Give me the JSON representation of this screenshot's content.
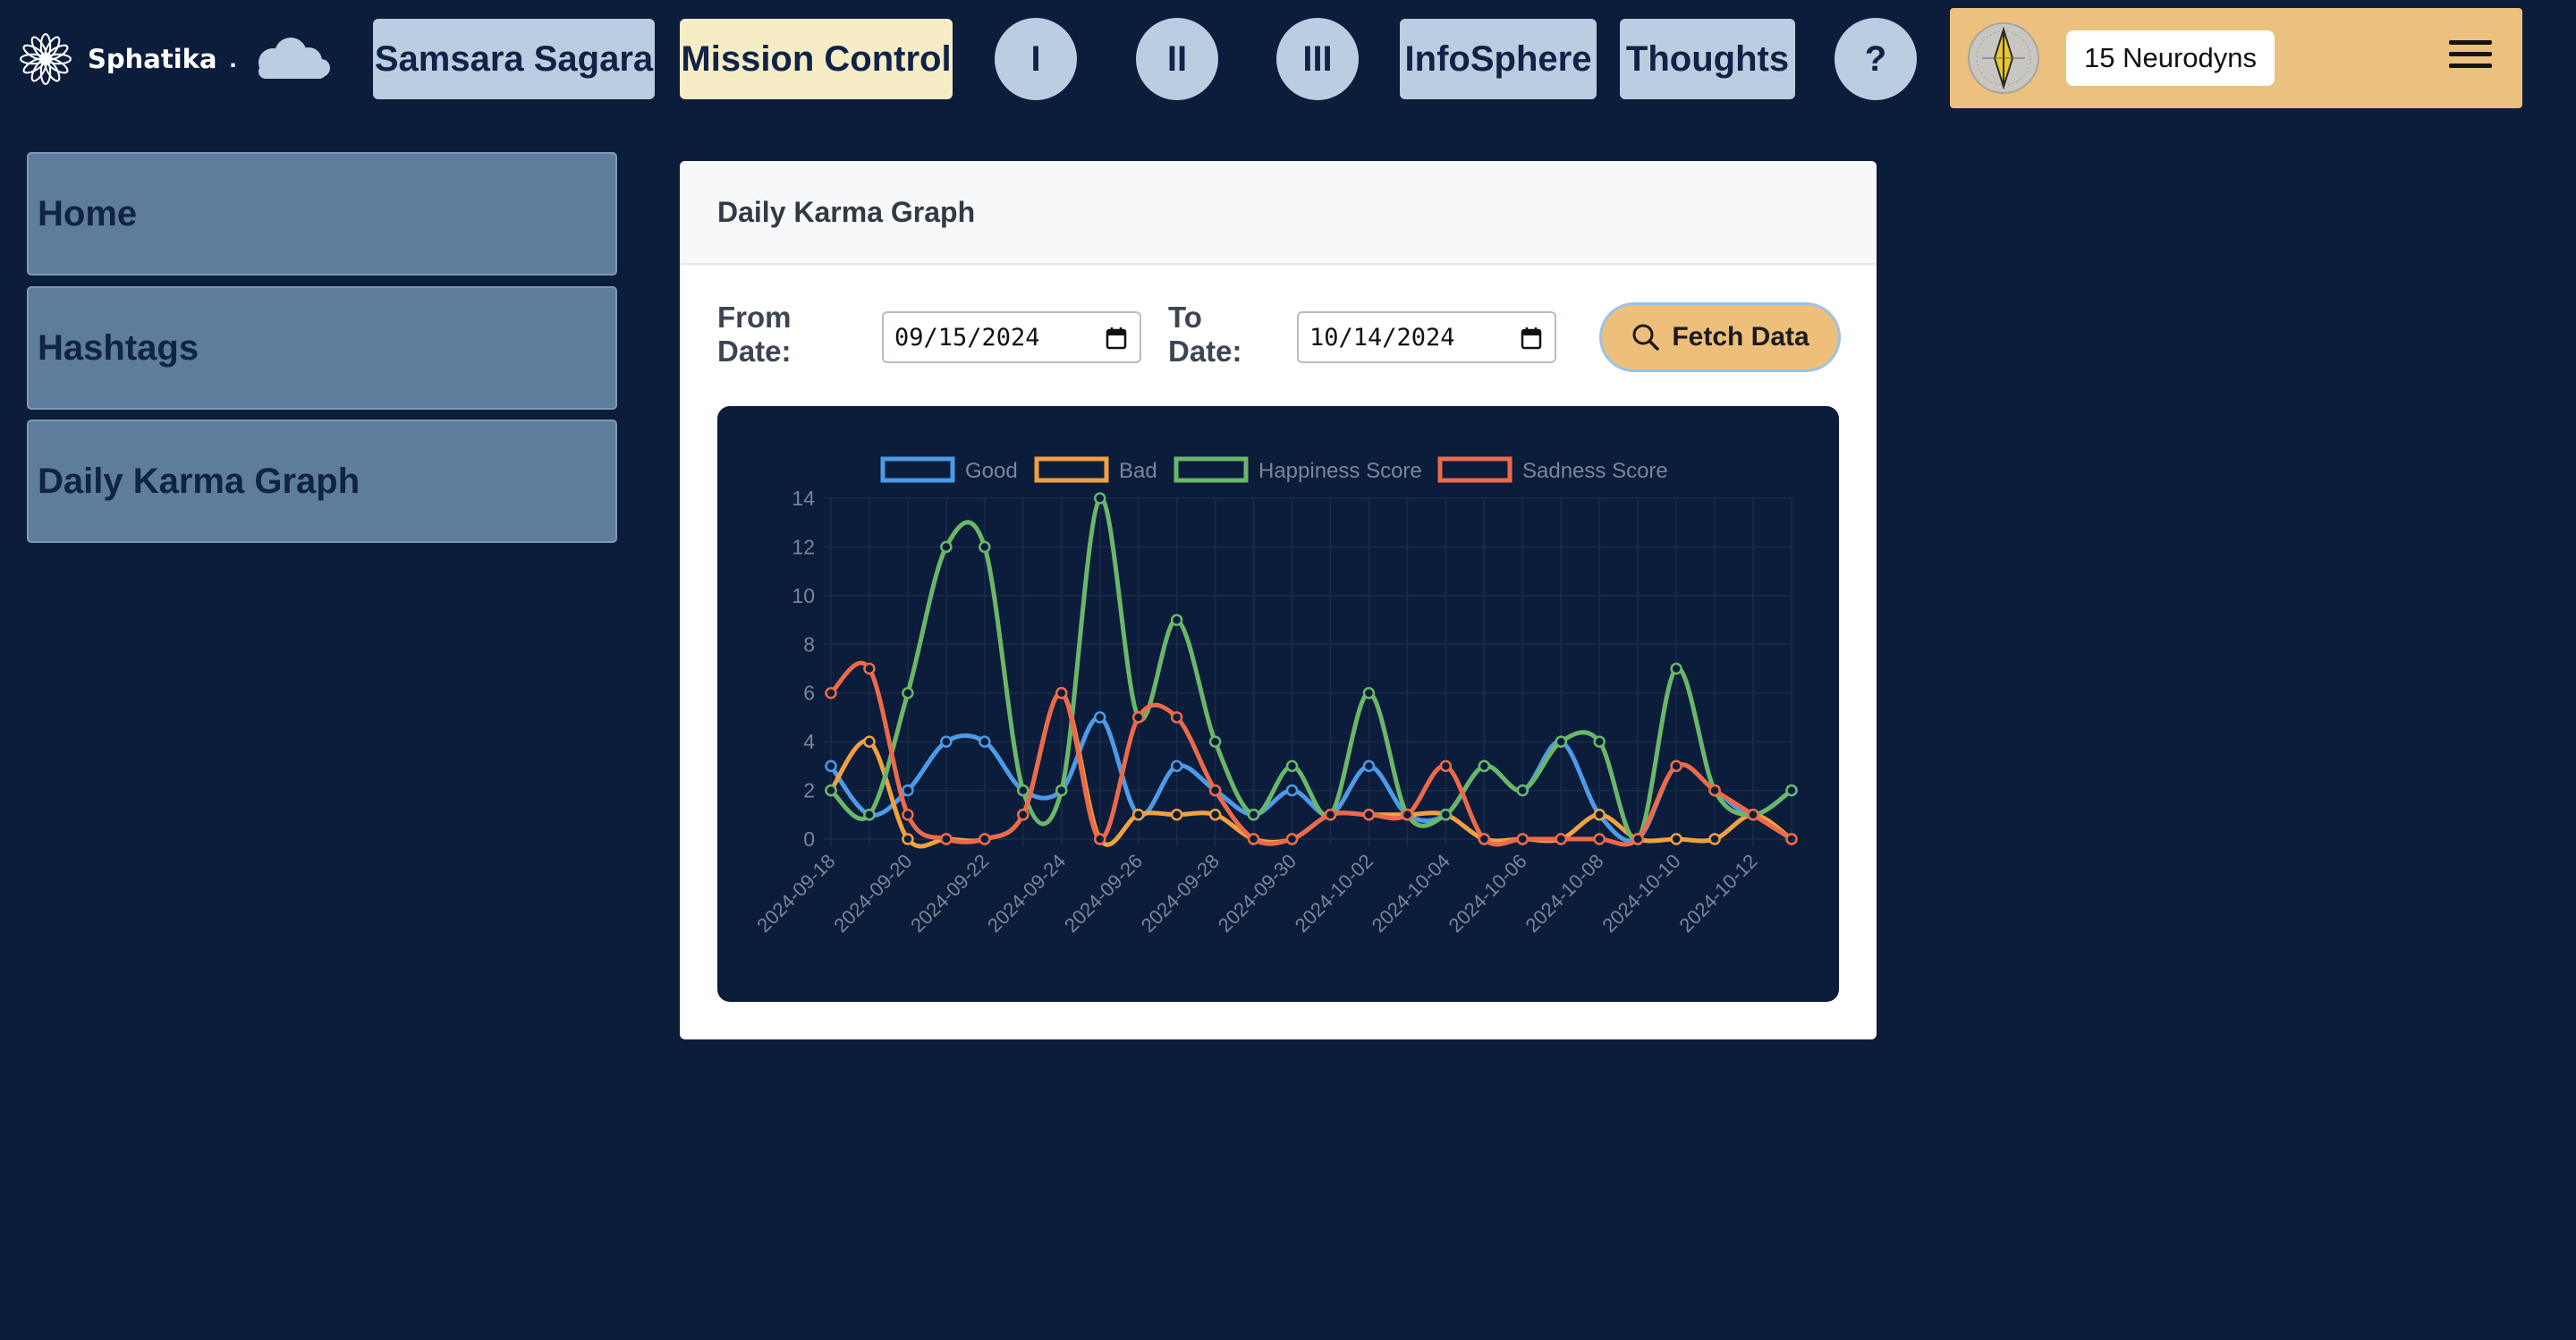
{
  "app": {
    "brand": "Sphatika",
    "brand_dot": "."
  },
  "nav": {
    "samsara": "Samsara Sagara",
    "mission": "Mission Control",
    "r1": "I",
    "r2": "II",
    "r3": "III",
    "infosphere": "InfoSphere",
    "thoughts": "Thoughts",
    "help": "?"
  },
  "user": {
    "neurodyns": "15 Neurodyns"
  },
  "sidebar": {
    "items": [
      {
        "label": "Home"
      },
      {
        "label": "Hashtags"
      },
      {
        "label": "Daily Karma Graph"
      }
    ]
  },
  "card": {
    "title": "Daily Karma Graph",
    "from_label_1": "From",
    "from_label_2": "Date:",
    "to_label_1": "To",
    "to_label_2": "Date:",
    "from_value": "09/15/2024",
    "to_value": "10/14/2024",
    "fetch_label": "Fetch Data"
  },
  "colors": {
    "good": "#4e9ae6",
    "bad": "#f2a13f",
    "happiness": "#6bb76a",
    "sadness": "#ec6a4a"
  },
  "chart_data": {
    "type": "line",
    "title": "",
    "ylim": [
      0,
      14
    ],
    "y_ticks": [
      "0",
      "2",
      "4",
      "6",
      "8",
      "10",
      "12",
      "14"
    ],
    "x": [
      "2024-09-18",
      "2024-09-19",
      "2024-09-20",
      "2024-09-21",
      "2024-09-22",
      "2024-09-23",
      "2024-09-24",
      "2024-09-25",
      "2024-09-26",
      "2024-09-27",
      "2024-09-28",
      "2024-09-29",
      "2024-09-30",
      "2024-10-01",
      "2024-10-02",
      "2024-10-03",
      "2024-10-04",
      "2024-10-05",
      "2024-10-06",
      "2024-10-07",
      "2024-10-08",
      "2024-10-09",
      "2024-10-10",
      "2024-10-11",
      "2024-10-12",
      "2024-10-13"
    ],
    "x_tick_labels": [
      "2024-09-18",
      "2024-09-20",
      "2024-09-22",
      "2024-09-24",
      "2024-09-26",
      "2024-09-28",
      "2024-09-30",
      "2024-10-02",
      "2024-10-04",
      "2024-10-06",
      "2024-10-08",
      "2024-10-10",
      "2024-10-12"
    ],
    "legend_position": "top",
    "grid": true,
    "series": [
      {
        "name": "Good",
        "color": "#4e9ae6",
        "values": [
          3,
          1,
          2,
          4,
          4,
          2,
          2,
          5,
          1,
          3,
          2,
          1,
          2,
          1,
          3,
          1,
          1,
          3,
          2,
          4,
          1,
          0,
          3,
          2,
          1,
          2
        ]
      },
      {
        "name": "Bad",
        "color": "#f2a13f",
        "values": [
          2,
          4,
          0,
          0,
          0,
          1,
          6,
          0,
          1,
          1,
          1,
          0,
          0,
          1,
          1,
          1,
          1,
          0,
          0,
          0,
          1,
          0,
          0,
          0,
          1,
          0
        ]
      },
      {
        "name": "Happiness Score",
        "color": "#6bb76a",
        "values": [
          2,
          1,
          6,
          12,
          12,
          2,
          2,
          14,
          5,
          9,
          4,
          1,
          3,
          1,
          6,
          1,
          1,
          3,
          2,
          4,
          4,
          0,
          7,
          2,
          1,
          2
        ]
      },
      {
        "name": "Sadness Score",
        "color": "#ec6a4a",
        "values": [
          6,
          7,
          1,
          0,
          0,
          1,
          6,
          0,
          5,
          5,
          2,
          0,
          0,
          1,
          1,
          1,
          3,
          0,
          0,
          0,
          0,
          0,
          3,
          2,
          1,
          0
        ]
      }
    ]
  }
}
